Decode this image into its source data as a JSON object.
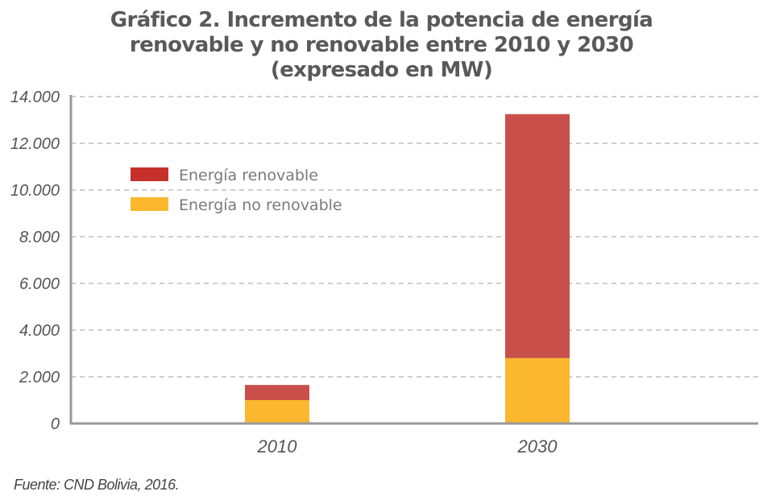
{
  "title_lines": [
    "Gráfico 2. Incremento de la potencia de energía",
    "renovable y no renovable entre 2010 y 2030",
    "(expresado en MW)"
  ],
  "source": "Fuente: CND Bolivia, 2016.",
  "colors": {
    "renovable": "#C9504A",
    "renovable_legend": "#C5302A",
    "no_renovable": "#FBB72E",
    "axis": "#999999",
    "grid": "#bdbdbd"
  },
  "chart_data": {
    "type": "bar",
    "stacked": true,
    "title": "Gráfico 2. Incremento de la potencia de energía renovable y no renovable entre 2010 y 2030 (expresado en MW)",
    "xlabel": "",
    "ylabel": "",
    "categories": [
      "2010",
      "2030"
    ],
    "series": [
      {
        "name": "Energía no renovable",
        "values": [
          1000,
          2800
        ],
        "color_key": "no_renovable"
      },
      {
        "name": "Energía renovable",
        "values": [
          650,
          10450
        ],
        "color_key": "renovable"
      }
    ],
    "legend_order": [
      "Energía renovable",
      "Energía no renovable"
    ],
    "legend_placement": "top-left",
    "ylim": [
      0,
      14000
    ],
    "yticks": [
      0,
      2000,
      4000,
      6000,
      8000,
      10000,
      12000,
      14000
    ],
    "ytick_labels": [
      "0",
      "2.000",
      "4.000",
      "6.000",
      "8.000",
      "10.000",
      "12.000",
      "14.000"
    ],
    "grid": true
  }
}
